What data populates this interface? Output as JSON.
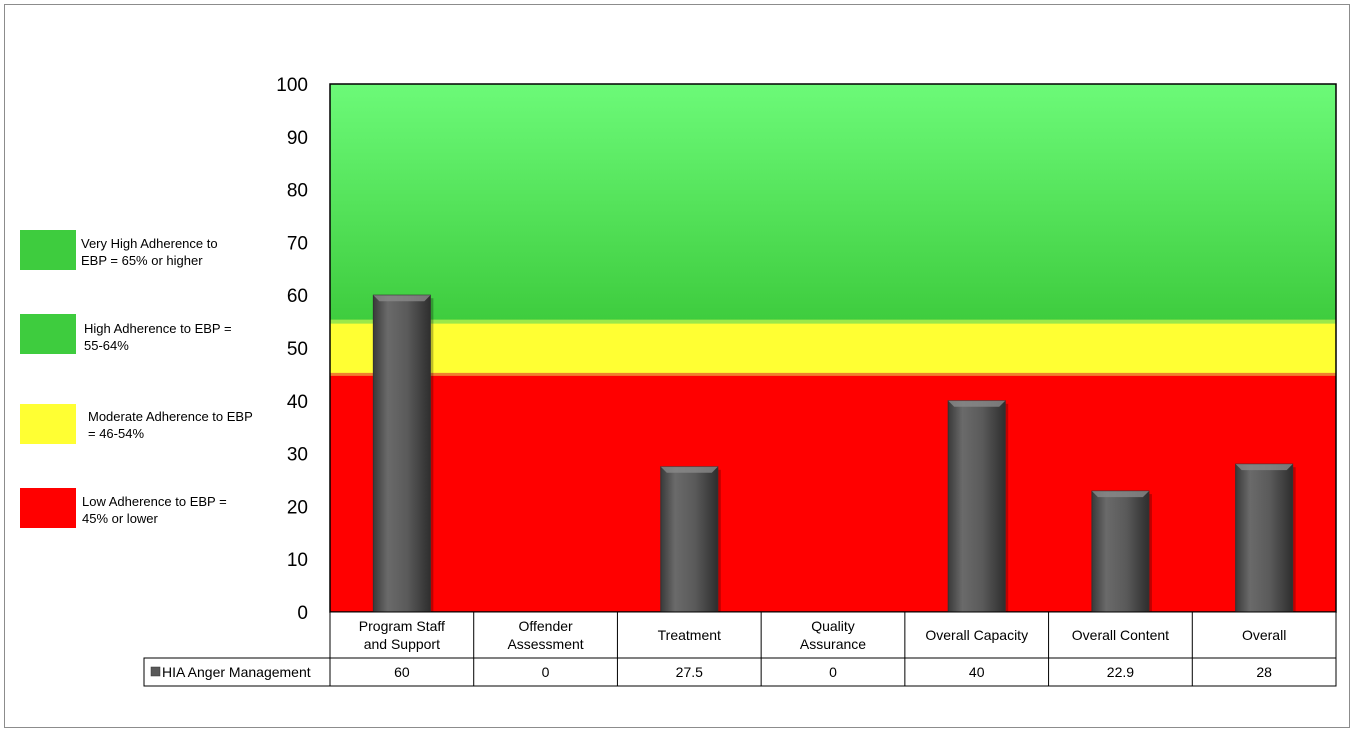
{
  "chart_data": {
    "type": "bar",
    "categories": [
      "Program Staff\nand Support",
      "Offender\nAssessment",
      "Treatment",
      "Quality\nAssurance",
      "Overall Capacity",
      "Overall Content",
      "Overall"
    ],
    "series": [
      {
        "name": "HIA Anger Management",
        "values": [
          60,
          0,
          27.5,
          0,
          40,
          22.9,
          28
        ],
        "labels": [
          "60",
          "0",
          "27.5",
          "0",
          "40",
          "22.9",
          "28"
        ],
        "color": "#595959"
      }
    ],
    "ylim": [
      0,
      100
    ],
    "yticks": [
      0,
      10,
      20,
      30,
      40,
      50,
      60,
      70,
      80,
      90,
      100
    ],
    "bands": [
      {
        "from": 0,
        "to": 45,
        "color": "#ff0000"
      },
      {
        "from": 45,
        "to": 55,
        "color": "#ffff33"
      },
      {
        "from": 55,
        "to": 100,
        "color": "#3ed13e"
      }
    ],
    "data_table": true,
    "grid": false
  },
  "legend": [
    {
      "label": "Very High Adherence to EBP = 65% or higher",
      "lines": [
        "Very High Adherence to",
        "EBP = 65% or higher"
      ],
      "color": "#3ecc3e"
    },
    {
      "label": "High Adherence to EBP = 55-64%",
      "lines": [
        "High Adherence to EBP =",
        "55-64%"
      ],
      "color": "#3ecc3e"
    },
    {
      "label": "Moderate Adherence to EBP = 46-54%",
      "lines": [
        "Moderate Adherence to EBP",
        "= 46-54%"
      ],
      "color": "#ffff33"
    },
    {
      "label": "Low Adherence to EBP = 45% or lower",
      "lines": [
        "Low Adherence to EBP =",
        "45% or lower"
      ],
      "color": "#ff0000"
    }
  ]
}
